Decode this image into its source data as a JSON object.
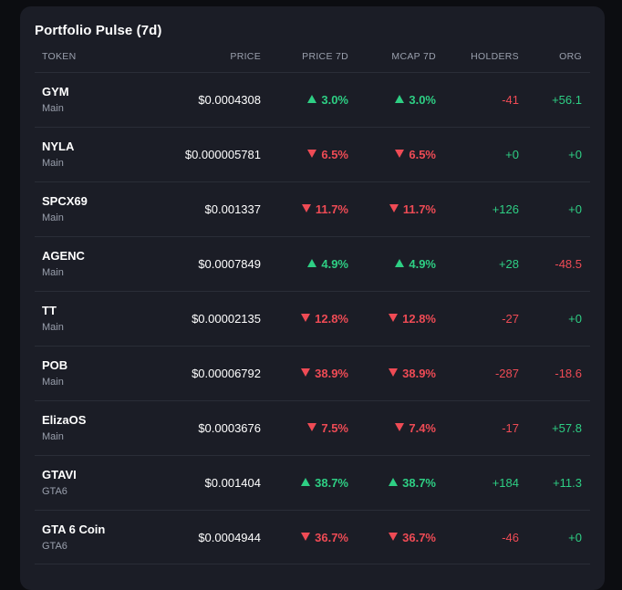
{
  "panel": {
    "title": "Portfolio Pulse (7d)"
  },
  "columns": [
    "TOKEN",
    "PRICE",
    "PRICE 7D",
    "MCAP 7D",
    "HOLDERS",
    "ORG"
  ],
  "colors": {
    "up": "#2ecf84",
    "down": "#ef4b55",
    "background": "#1b1d26"
  },
  "rows": [
    {
      "symbol": "GYM",
      "group": "Main",
      "price": "$0.0004308",
      "price_7d": "3.0%",
      "price_dir": "up",
      "mcap_7d": "3.0%",
      "mcap_dir": "up",
      "holders": "-41",
      "holders_dir": "down",
      "org": "+56.1",
      "org_dir": "up"
    },
    {
      "symbol": "NYLA",
      "group": "Main",
      "price": "$0.000005781",
      "price_7d": "6.5%",
      "price_dir": "down",
      "mcap_7d": "6.5%",
      "mcap_dir": "down",
      "holders": "+0",
      "holders_dir": "up",
      "org": "+0",
      "org_dir": "up"
    },
    {
      "symbol": "SPCX69",
      "group": "Main",
      "price": "$0.001337",
      "price_7d": "11.7%",
      "price_dir": "down",
      "mcap_7d": "11.7%",
      "mcap_dir": "down",
      "holders": "+126",
      "holders_dir": "up",
      "org": "+0",
      "org_dir": "up"
    },
    {
      "symbol": "AGENC",
      "group": "Main",
      "price": "$0.0007849",
      "price_7d": "4.9%",
      "price_dir": "up",
      "mcap_7d": "4.9%",
      "mcap_dir": "up",
      "holders": "+28",
      "holders_dir": "up",
      "org": "-48.5",
      "org_dir": "down"
    },
    {
      "symbol": "TT",
      "group": "Main",
      "price": "$0.00002135",
      "price_7d": "12.8%",
      "price_dir": "down",
      "mcap_7d": "12.8%",
      "mcap_dir": "down",
      "holders": "-27",
      "holders_dir": "down",
      "org": "+0",
      "org_dir": "up"
    },
    {
      "symbol": "POB",
      "group": "Main",
      "price": "$0.00006792",
      "price_7d": "38.9%",
      "price_dir": "down",
      "mcap_7d": "38.9%",
      "mcap_dir": "down",
      "holders": "-287",
      "holders_dir": "down",
      "org": "-18.6",
      "org_dir": "down"
    },
    {
      "symbol": "ElizaOS",
      "group": "Main",
      "price": "$0.0003676",
      "price_7d": "7.5%",
      "price_dir": "down",
      "mcap_7d": "7.4%",
      "mcap_dir": "down",
      "holders": "-17",
      "holders_dir": "down",
      "org": "+57.8",
      "org_dir": "up"
    },
    {
      "symbol": "GTAVI",
      "group": "GTA6",
      "price": "$0.001404",
      "price_7d": "38.7%",
      "price_dir": "up",
      "mcap_7d": "38.7%",
      "mcap_dir": "up",
      "holders": "+184",
      "holders_dir": "up",
      "org": "+11.3",
      "org_dir": "up"
    },
    {
      "symbol": "GTA 6 Coin",
      "group": "GTA6",
      "price": "$0.0004944",
      "price_7d": "36.7%",
      "price_dir": "down",
      "mcap_7d": "36.7%",
      "mcap_dir": "down",
      "holders": "-46",
      "holders_dir": "down",
      "org": "+0",
      "org_dir": "up"
    }
  ]
}
